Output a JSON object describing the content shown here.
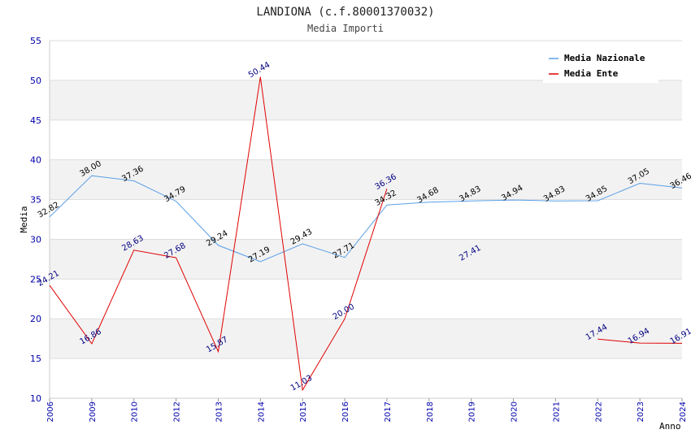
{
  "chart_data": {
    "type": "line",
    "title": "LANDIONA (c.f.80001370032)",
    "subtitle": "Media Importi",
    "ylabel": "Media",
    "xlabel": "Anno",
    "ylim": [
      10,
      55
    ],
    "yticks": [
      10,
      15,
      20,
      25,
      30,
      35,
      40,
      45,
      50,
      55
    ],
    "categories": [
      "2006",
      "2009",
      "2010",
      "2012",
      "2013",
      "2014",
      "2015",
      "2016",
      "2017",
      "2018",
      "2019",
      "2020",
      "2021",
      "2022",
      "2023",
      "2024"
    ],
    "series": [
      {
        "name": "Media Nazionale",
        "color": "#5aa0e6",
        "values": [
          32.82,
          38.0,
          37.36,
          34.79,
          29.24,
          27.19,
          29.43,
          27.71,
          34.32,
          34.68,
          34.83,
          34.94,
          34.83,
          34.85,
          37.05,
          36.46
        ]
      },
      {
        "name": "Media Ente",
        "color": "#e00000",
        "values": [
          24.21,
          16.86,
          28.63,
          27.68,
          15.87,
          50.44,
          11.03,
          20.0,
          36.36,
          null,
          27.41,
          null,
          null,
          17.44,
          16.94,
          16.91
        ]
      }
    ],
    "grid": true,
    "legend": "top-right"
  }
}
